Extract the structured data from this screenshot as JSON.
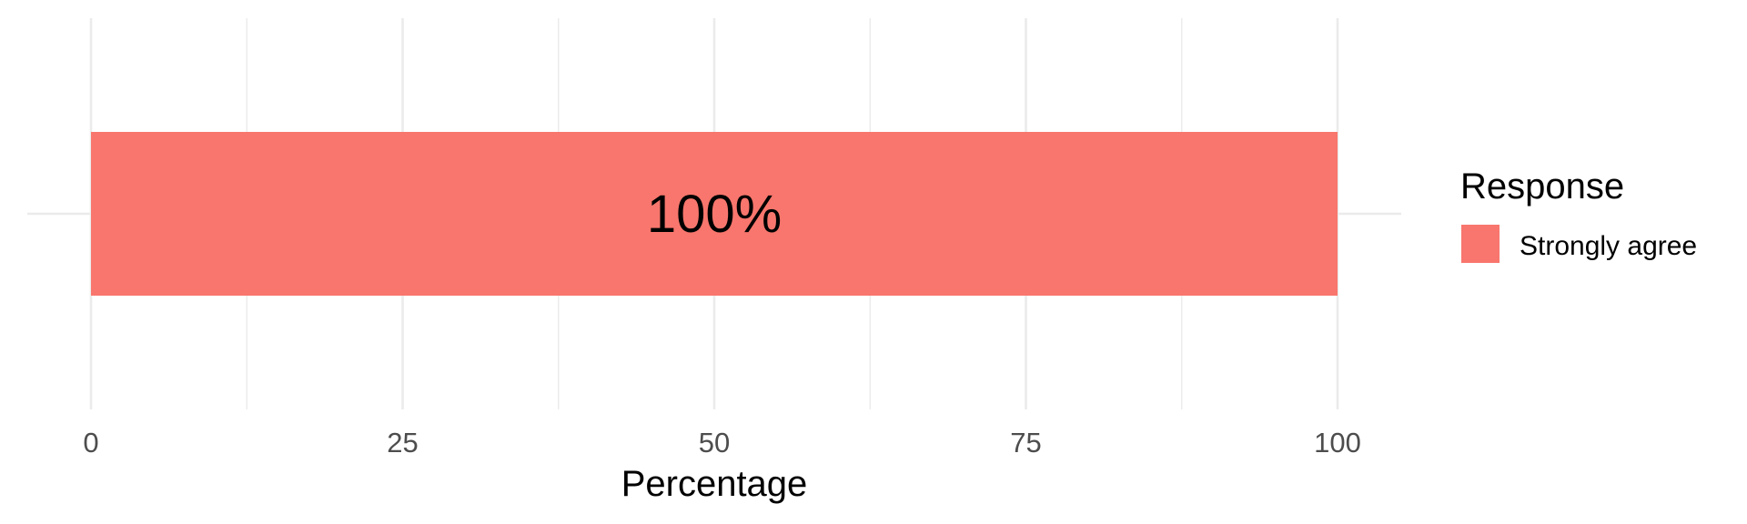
{
  "chart_data": {
    "type": "bar",
    "orientation": "horizontal",
    "stacked": true,
    "categories": [
      ""
    ],
    "series": [
      {
        "name": "Strongly agree",
        "values": [
          100
        ],
        "color": "#f8766d"
      }
    ],
    "data_labels": [
      "100%"
    ],
    "title": "",
    "xlabel": "Percentage",
    "ylabel": "",
    "xlim": [
      0,
      100
    ],
    "x_ticks": [
      0,
      25,
      50,
      75,
      100
    ],
    "x_tick_labels": [
      "0",
      "25",
      "50",
      "75",
      "100"
    ],
    "grid": true,
    "legend": {
      "title": "Response",
      "position": "right",
      "entries": [
        "Strongly agree"
      ]
    }
  }
}
